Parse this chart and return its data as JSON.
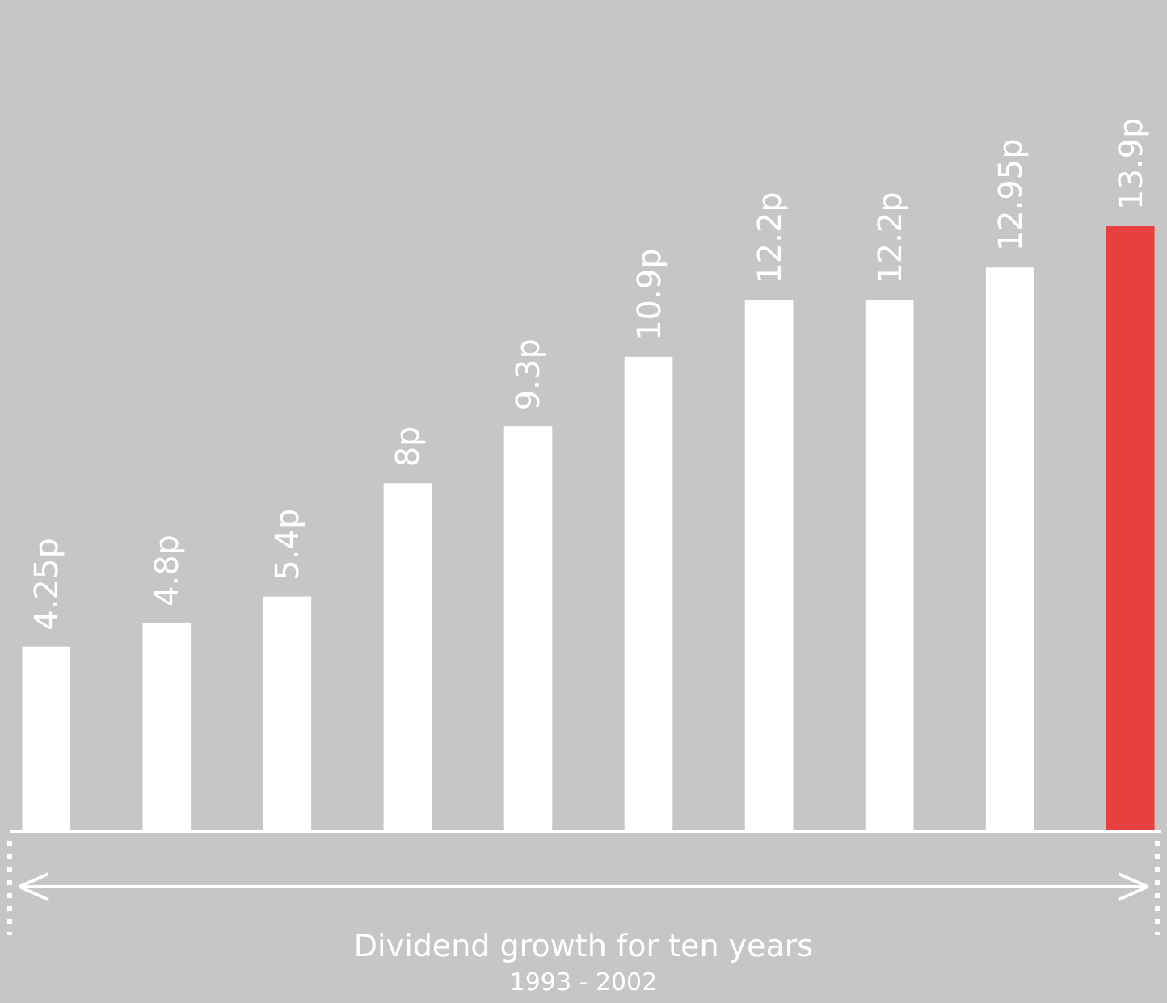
{
  "chart_data": {
    "type": "bar",
    "relative": false,
    "categories": [
      null,
      null,
      null,
      null,
      null,
      null,
      null,
      null,
      null,
      null
    ],
    "values": [
      4.25,
      4.8,
      5.4,
      8,
      9.3,
      10.9,
      12.2,
      12.2,
      12.95,
      13.9
    ],
    "colors": [
      "#ffffff",
      "#ffffff",
      "#ffffff",
      "#ffffff",
      "#ffffff",
      "#ffffff",
      "#ffffff",
      "#ffffff",
      "#ffffff",
      "#e8403f"
    ],
    "value_labels": [
      "4.25p",
      "4.8p",
      "5.4p",
      "8p",
      "9.3p",
      "10.9p",
      "12.2p",
      "12.2p",
      "12.95p",
      "13.9p"
    ],
    "xlabel": "Dividend growth for ten years",
    "annotations": [
      "1993 - 2002"
    ]
  }
}
